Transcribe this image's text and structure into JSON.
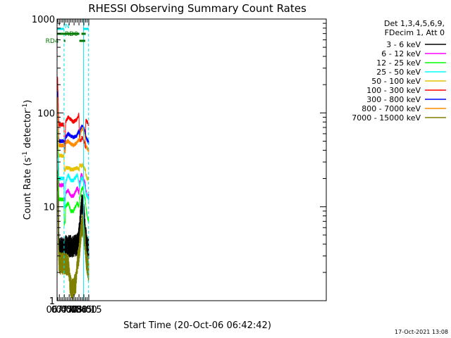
{
  "chart_data": {
    "type": "line",
    "title": "RHESSI Observing Summary Count Rates",
    "xlabel": "Start Time (20-Oct-06 06:42:42)",
    "ylabel_main": "Count Rate (s",
    "ylabel_sup1": "-1",
    "ylabel_mid": " detector",
    "ylabel_sup2": "-1",
    "ylabel_end": ")",
    "y_scale": "log",
    "x_domain_min": [
      398,
      1222
    ],
    "y_domain": [
      1,
      1000
    ],
    "y_ticks": [
      {
        "v": 1,
        "label": "1"
      },
      {
        "v": 10,
        "label": "10"
      },
      {
        "v": 100,
        "label": "100"
      },
      {
        "v": 1000,
        "label": "1000"
      }
    ],
    "x_ticks": [
      {
        "v": 405,
        "label": "06:45"
      },
      {
        "v": 420,
        "label": "07:00"
      },
      {
        "v": 435,
        "label": "07:15"
      },
      {
        "v": 450,
        "label": "07:30"
      },
      {
        "v": 465,
        "label": "07:45"
      },
      {
        "v": 480,
        "label": "08:00"
      },
      {
        "v": 495,
        "label": "08:15"
      }
    ],
    "grid": false,
    "legend_position": "right",
    "legend_header_1": "Det 1,3,4,5,6,9,",
    "legend_header_2": "FDecim 1, Att 0",
    "timestamp": "17-Oct-2021 13:08",
    "vlines": [
      {
        "t": 419.3,
        "style": "dashed",
        "color": "#00e5ee"
      },
      {
        "t": 478.7,
        "style": "solid",
        "color": "#00e5ee"
      },
      {
        "t": 494.5,
        "style": "dashed",
        "color": "#00e5ee"
      }
    ],
    "flags": [
      {
        "name": "N",
        "label_t": 419.6,
        "color": "#00e5ee",
        "segments": [
          [
            398,
            419.3
          ],
          [
            478.7,
            494.8
          ]
        ]
      },
      {
        "name": "RD0",
        "label_t": 419.6,
        "color": "#007700",
        "segments": [
          [
            398,
            466.2
          ],
          [
            472.6,
            485.6
          ]
        ]
      },
      {
        "name": "RD4",
        "label_t": 412,
        "color": "#007700",
        "segments": [
          [
            418.8,
            423.5
          ],
          [
            466.2,
            484.2
          ]
        ]
      }
    ],
    "series": [
      {
        "name": "3 - 6 keV",
        "color": "#000000",
        "points": [
          [
            398.5,
            50
          ],
          [
            400,
            55
          ],
          [
            401,
            40
          ],
          [
            402,
            12
          ],
          [
            403,
            5
          ],
          [
            404,
            3.6
          ],
          [
            420,
            3.6
          ],
          [
            423,
            3.8
          ],
          [
            448,
            3.8
          ],
          [
            460,
            4
          ],
          [
            465,
            5
          ],
          [
            470,
            8
          ],
          [
            474,
            11
          ],
          [
            478,
            10
          ],
          [
            482,
            7
          ],
          [
            486,
            5
          ],
          [
            489,
            4
          ],
          [
            495,
            3.6
          ]
        ]
      },
      {
        "name": "6 - 12 keV",
        "color": "#ff00ff",
        "points": [
          [
            398.5,
            100
          ],
          [
            399.5,
            140
          ],
          [
            401,
            75
          ],
          [
            402,
            40
          ],
          [
            403,
            22
          ],
          [
            404,
            17
          ],
          [
            419,
            17
          ],
          [
            420,
            12
          ],
          [
            423,
            12
          ],
          [
            424,
            14
          ],
          [
            432,
            15
          ],
          [
            440,
            13
          ],
          [
            448,
            13
          ],
          [
            460,
            16
          ],
          [
            465,
            14
          ],
          [
            467,
            18
          ],
          [
            472,
            22
          ],
          [
            476,
            21
          ],
          [
            480,
            19
          ],
          [
            484,
            18
          ],
          [
            486,
            15
          ],
          [
            490,
            13
          ],
          [
            495,
            13
          ]
        ]
      },
      {
        "name": "12 - 25 keV",
        "color": "#00ff00",
        "points": [
          [
            398.5,
            55
          ],
          [
            400,
            65
          ],
          [
            401,
            45
          ],
          [
            402,
            22
          ],
          [
            403,
            14
          ],
          [
            404,
            12
          ],
          [
            419,
            12
          ],
          [
            420,
            6.5
          ],
          [
            423,
            7
          ],
          [
            424,
            10
          ],
          [
            432,
            11
          ],
          [
            440,
            9
          ],
          [
            448,
            9
          ],
          [
            460,
            11
          ],
          [
            465,
            10
          ],
          [
            467,
            12
          ],
          [
            472,
            15
          ],
          [
            476,
            16
          ],
          [
            480,
            14
          ],
          [
            484,
            12
          ],
          [
            486,
            10
          ],
          [
            490,
            8
          ],
          [
            495,
            7
          ]
        ]
      },
      {
        "name": "25 - 50 keV",
        "color": "#00ffff",
        "points": [
          [
            398.5,
            85
          ],
          [
            400,
            95
          ],
          [
            401,
            60
          ],
          [
            402,
            35
          ],
          [
            403,
            22
          ],
          [
            404,
            20
          ],
          [
            419,
            20
          ],
          [
            420,
            10
          ],
          [
            423,
            10
          ],
          [
            424,
            18
          ],
          [
            432,
            22
          ],
          [
            440,
            19
          ],
          [
            448,
            19
          ],
          [
            460,
            22
          ],
          [
            465,
            18
          ],
          [
            467,
            16
          ],
          [
            472,
            20
          ],
          [
            476,
            20
          ],
          [
            480,
            18
          ],
          [
            484,
            16
          ],
          [
            486,
            14
          ],
          [
            490,
            13
          ],
          [
            495,
            12
          ]
        ]
      },
      {
        "name": "50 - 100 keV",
        "color": "#e6c200",
        "points": [
          [
            398.5,
            120
          ],
          [
            400,
            125
          ],
          [
            401,
            70
          ],
          [
            402,
            45
          ],
          [
            403,
            38
          ],
          [
            404,
            35
          ],
          [
            419,
            35
          ],
          [
            420,
            25
          ],
          [
            423,
            24
          ],
          [
            424,
            26
          ],
          [
            432,
            26
          ],
          [
            440,
            25
          ],
          [
            448,
            25
          ],
          [
            460,
            26
          ],
          [
            465,
            25
          ],
          [
            466,
            25
          ],
          [
            467,
            28
          ],
          [
            472,
            27
          ],
          [
            476,
            28
          ],
          [
            480,
            26
          ],
          [
            484,
            25
          ],
          [
            485,
            25
          ],
          [
            486,
            22
          ],
          [
            490,
            20
          ],
          [
            495,
            20
          ]
        ]
      },
      {
        "name": "100 - 300 keV",
        "color": "#ff0000",
        "points": [
          [
            398.5,
            180
          ],
          [
            399.5,
            240
          ],
          [
            401,
            160
          ],
          [
            402,
            110
          ],
          [
            403,
            80
          ],
          [
            404,
            75
          ],
          [
            419,
            75
          ],
          [
            420,
            50
          ],
          [
            423,
            45
          ],
          [
            424,
            80
          ],
          [
            432,
            90
          ],
          [
            440,
            85
          ],
          [
            448,
            80
          ],
          [
            458,
            85
          ],
          [
            464,
            95
          ],
          [
            465,
            100
          ],
          [
            466,
            55
          ],
          [
            470,
            50
          ],
          [
            474,
            55
          ],
          [
            478,
            52
          ],
          [
            482,
            48
          ],
          [
            485,
            42
          ],
          [
            486,
            85
          ],
          [
            490,
            80
          ],
          [
            495,
            75
          ]
        ]
      },
      {
        "name": "300 - 800 keV",
        "color": "#0000ff",
        "points": [
          [
            398.5,
            120
          ],
          [
            399.5,
            170
          ],
          [
            401,
            110
          ],
          [
            402,
            70
          ],
          [
            403,
            55
          ],
          [
            404,
            50
          ],
          [
            419,
            50
          ],
          [
            420,
            40
          ],
          [
            423,
            42
          ],
          [
            424,
            55
          ],
          [
            432,
            60
          ],
          [
            440,
            57
          ],
          [
            448,
            55
          ],
          [
            458,
            57
          ],
          [
            464,
            64
          ],
          [
            466,
            60
          ],
          [
            470,
            68
          ],
          [
            474,
            72
          ],
          [
            478,
            70
          ],
          [
            482,
            66
          ],
          [
            485,
            60
          ],
          [
            486,
            56
          ],
          [
            490,
            52
          ],
          [
            495,
            48
          ]
        ]
      },
      {
        "name": "800 - 7000 keV",
        "color": "#ff8c00",
        "points": [
          [
            398.5,
            120
          ],
          [
            399.5,
            150
          ],
          [
            401,
            90
          ],
          [
            402,
            60
          ],
          [
            403,
            48
          ],
          [
            404,
            45
          ],
          [
            419,
            45
          ],
          [
            420,
            40
          ],
          [
            423,
            38
          ],
          [
            424,
            48
          ],
          [
            432,
            50
          ],
          [
            440,
            47
          ],
          [
            448,
            45
          ],
          [
            458,
            48
          ],
          [
            464,
            52
          ],
          [
            466,
            50
          ],
          [
            470,
            60
          ],
          [
            474,
            68
          ],
          [
            478,
            67
          ],
          [
            482,
            60
          ],
          [
            485,
            52
          ],
          [
            486,
            45
          ],
          [
            490,
            42
          ],
          [
            495,
            40
          ]
        ]
      },
      {
        "name": "7000 - 15000 keV",
        "color": "#808000",
        "points": [
          [
            398.5,
            18
          ],
          [
            399.5,
            20
          ],
          [
            400.5,
            15
          ],
          [
            401.5,
            6
          ],
          [
            402.5,
            3
          ],
          [
            404,
            2.5
          ],
          [
            420,
            2.5
          ],
          [
            432,
            2.4
          ],
          [
            438,
            1.5
          ],
          [
            447,
            1.3
          ],
          [
            456,
            1.6
          ],
          [
            460,
            2.5
          ],
          [
            465,
            3
          ],
          [
            468,
            4
          ],
          [
            472,
            6
          ],
          [
            476,
            6.5
          ],
          [
            480,
            5.5
          ],
          [
            484,
            4
          ],
          [
            486,
            3
          ],
          [
            490,
            2.5
          ],
          [
            495,
            2
          ]
        ]
      }
    ]
  }
}
